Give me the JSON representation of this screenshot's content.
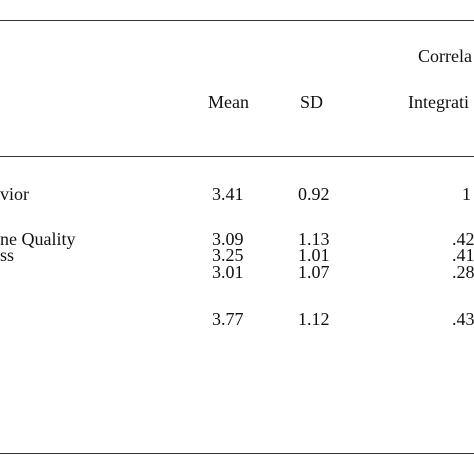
{
  "table": {
    "header": {
      "group_label": "Correla",
      "columns": [
        "Mean",
        "SD",
        "Integrati"
      ]
    },
    "rows": [
      {
        "label": "vior",
        "mean": "3.41",
        "sd": "0.92",
        "corr": "1"
      },
      {
        "label": "ne Quality",
        "mean": "3.09",
        "sd": "1.13",
        "corr": ".42"
      },
      {
        "label": "ss",
        "mean": "3.25",
        "sd": "1.01",
        "corr": ".41"
      },
      {
        "label": "",
        "mean": "3.01",
        "sd": "1.07",
        "corr": ".28"
      },
      {
        "label": "",
        "mean": "3.77",
        "sd": "1.12",
        "corr": ".43"
      }
    ]
  }
}
